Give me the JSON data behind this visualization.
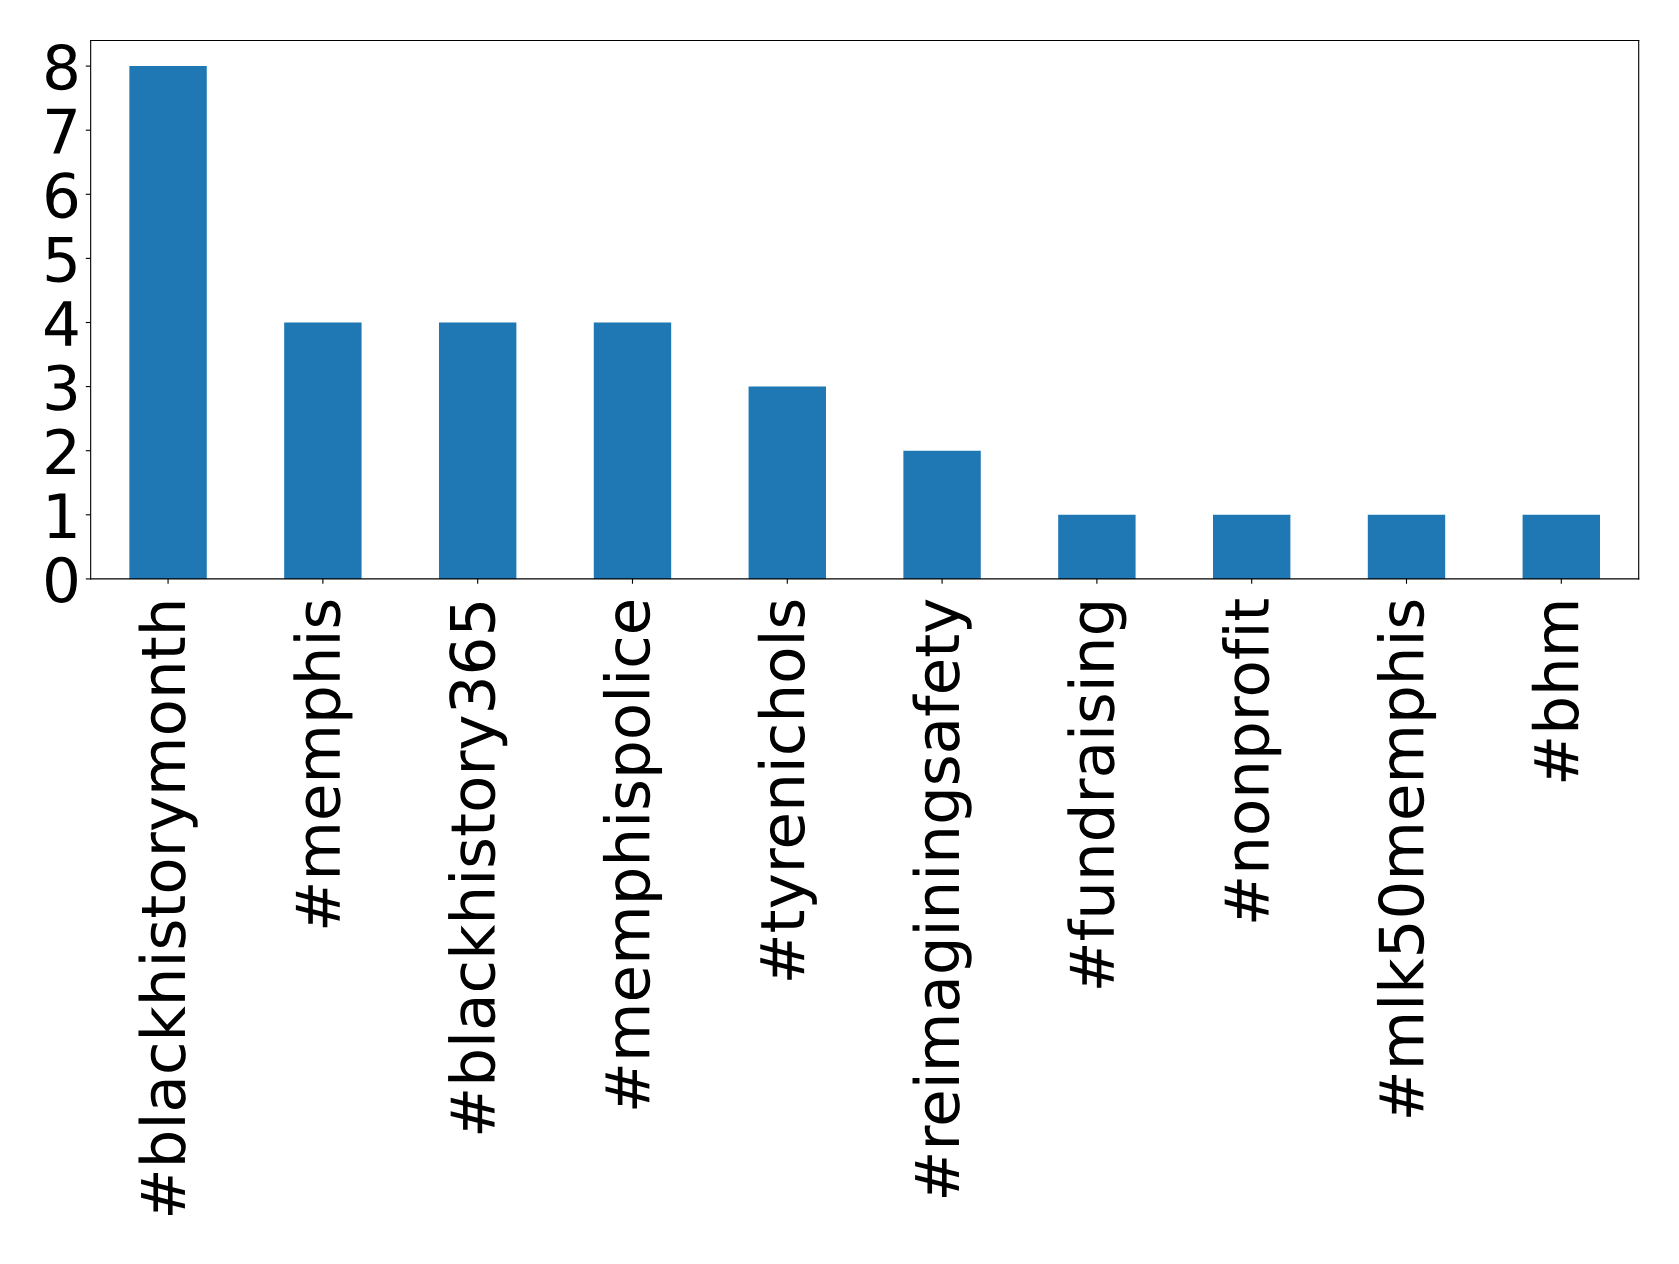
{
  "chart_data": {
    "type": "bar",
    "categories": [
      "#blackhistorymonth",
      "#memphis",
      "#blackhistory365",
      "#memphispolice",
      "#tyrenichols",
      "#reimaginingsafety",
      "#fundraising",
      "#nonprofit",
      "#mlk50memphis",
      "#bhm"
    ],
    "values": [
      8,
      4,
      4,
      4,
      3,
      2,
      1,
      1,
      1,
      1
    ],
    "color": "#1f77b4",
    "ylim": [
      0,
      8.4
    ],
    "yticks": [
      0,
      1,
      2,
      3,
      4,
      5,
      6,
      7,
      8
    ],
    "grid": false
  }
}
